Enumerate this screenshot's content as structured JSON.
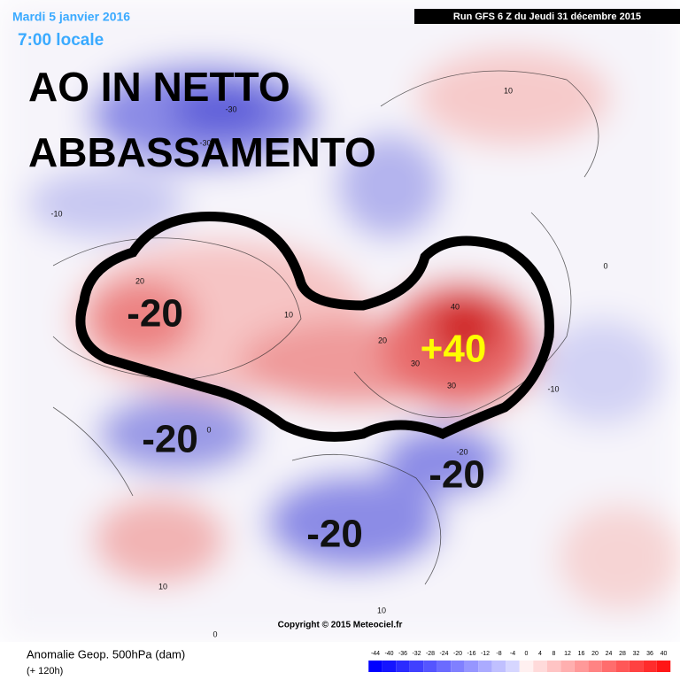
{
  "header": {
    "date": "Mardi 5 janvier 2016",
    "time": "7:00 locale",
    "run": "Run GFS 6 Z du Jeudi 31 décembre 2015"
  },
  "overlay": {
    "title_lines": [
      "AO IN NETTO",
      "ABBASSAMENTO"
    ],
    "annotations": [
      "-20",
      "+40",
      "-20",
      "-20",
      "-20"
    ]
  },
  "map": {
    "contour_labels": [
      "10",
      "-30",
      "-30",
      "-10",
      "20",
      "10",
      "40",
      "20",
      "30",
      "30",
      "-10",
      "0",
      "0",
      "-20",
      "10",
      "10",
      "0"
    ],
    "copyright": "Copyright © 2015 Meteociel.fr"
  },
  "footer": {
    "title": "Anomalie Geop. 500hPa (dam)",
    "lead": "(+ 120h)"
  },
  "legend": {
    "ticks": [
      -44,
      -40,
      -36,
      -32,
      -28,
      -24,
      -20,
      -16,
      -12,
      -8,
      -4,
      0,
      4,
      8,
      12,
      16,
      20,
      24,
      28,
      32,
      36,
      40
    ]
  }
}
